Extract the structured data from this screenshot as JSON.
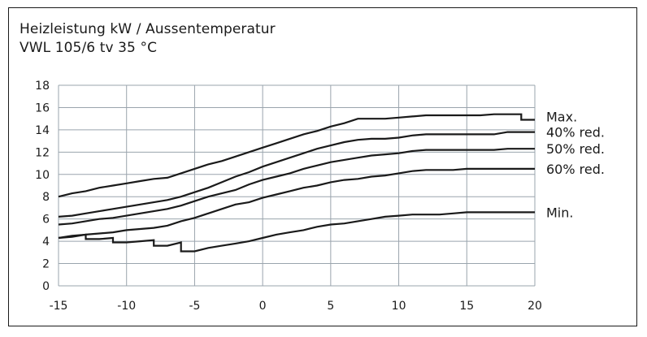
{
  "chart_data": {
    "type": "line",
    "title": "Heizleistung kW / Aussentemperatur",
    "subtitle": "VWL 105/6 tv 35 °C",
    "xlabel": "",
    "ylabel": "",
    "xlim": [
      -15,
      20
    ],
    "ylim": [
      0,
      18
    ],
    "x_ticks": [
      -15,
      -10,
      -5,
      0,
      5,
      10,
      15,
      20
    ],
    "y_ticks": [
      0,
      2,
      4,
      6,
      8,
      10,
      12,
      14,
      16,
      18
    ],
    "grid": true,
    "series": [
      {
        "name": "Max.",
        "points": [
          [
            -15,
            8.0
          ],
          [
            -14,
            8.3
          ],
          [
            -13,
            8.5
          ],
          [
            -12,
            8.8
          ],
          [
            -11,
            9.0
          ],
          [
            -10,
            9.2
          ],
          [
            -9,
            9.4
          ],
          [
            -8,
            9.6
          ],
          [
            -7,
            9.7
          ],
          [
            -6,
            10.1
          ],
          [
            -5,
            10.5
          ],
          [
            -4,
            10.9
          ],
          [
            -3,
            11.2
          ],
          [
            -2,
            11.6
          ],
          [
            -1,
            12.0
          ],
          [
            0,
            12.4
          ],
          [
            1,
            12.8
          ],
          [
            2,
            13.2
          ],
          [
            3,
            13.6
          ],
          [
            4,
            13.9
          ],
          [
            5,
            14.3
          ],
          [
            6,
            14.6
          ],
          [
            7,
            15.0
          ],
          [
            8,
            15.0
          ],
          [
            9,
            15.0
          ],
          [
            10,
            15.1
          ],
          [
            11,
            15.2
          ],
          [
            12,
            15.3
          ],
          [
            13,
            15.3
          ],
          [
            14,
            15.3
          ],
          [
            15,
            15.3
          ],
          [
            16,
            15.3
          ],
          [
            17,
            15.4
          ],
          [
            18,
            15.4
          ],
          [
            19,
            15.4
          ],
          [
            19,
            14.9
          ],
          [
            20,
            14.9
          ]
        ]
      },
      {
        "name": "40% red.",
        "points": [
          [
            -15,
            6.2
          ],
          [
            -14,
            6.3
          ],
          [
            -13,
            6.5
          ],
          [
            -12,
            6.7
          ],
          [
            -11,
            6.9
          ],
          [
            -10,
            7.1
          ],
          [
            -9,
            7.3
          ],
          [
            -8,
            7.5
          ],
          [
            -7,
            7.7
          ],
          [
            -6,
            8.0
          ],
          [
            -5,
            8.4
          ],
          [
            -4,
            8.8
          ],
          [
            -3,
            9.3
          ],
          [
            -2,
            9.8
          ],
          [
            -1,
            10.2
          ],
          [
            0,
            10.7
          ],
          [
            1,
            11.1
          ],
          [
            2,
            11.5
          ],
          [
            3,
            11.9
          ],
          [
            4,
            12.3
          ],
          [
            5,
            12.6
          ],
          [
            6,
            12.9
          ],
          [
            7,
            13.1
          ],
          [
            8,
            13.2
          ],
          [
            9,
            13.2
          ],
          [
            10,
            13.3
          ],
          [
            11,
            13.5
          ],
          [
            12,
            13.6
          ],
          [
            13,
            13.6
          ],
          [
            14,
            13.6
          ],
          [
            15,
            13.6
          ],
          [
            16,
            13.6
          ],
          [
            17,
            13.6
          ],
          [
            18,
            13.8
          ],
          [
            19,
            13.8
          ],
          [
            20,
            13.8
          ]
        ]
      },
      {
        "name": "50% red.",
        "points": [
          [
            -15,
            5.5
          ],
          [
            -14,
            5.6
          ],
          [
            -13,
            5.8
          ],
          [
            -12,
            6.0
          ],
          [
            -11,
            6.1
          ],
          [
            -10,
            6.3
          ],
          [
            -9,
            6.5
          ],
          [
            -8,
            6.7
          ],
          [
            -7,
            6.9
          ],
          [
            -6,
            7.2
          ],
          [
            -5,
            7.6
          ],
          [
            -4,
            8.0
          ],
          [
            -3,
            8.3
          ],
          [
            -2,
            8.6
          ],
          [
            -1,
            9.1
          ],
          [
            0,
            9.5
          ],
          [
            1,
            9.8
          ],
          [
            2,
            10.1
          ],
          [
            3,
            10.5
          ],
          [
            4,
            10.8
          ],
          [
            5,
            11.1
          ],
          [
            6,
            11.3
          ],
          [
            7,
            11.5
          ],
          [
            8,
            11.7
          ],
          [
            9,
            11.8
          ],
          [
            10,
            11.9
          ],
          [
            11,
            12.1
          ],
          [
            12,
            12.2
          ],
          [
            13,
            12.2
          ],
          [
            14,
            12.2
          ],
          [
            15,
            12.2
          ],
          [
            16,
            12.2
          ],
          [
            17,
            12.2
          ],
          [
            18,
            12.3
          ],
          [
            19,
            12.3
          ],
          [
            20,
            12.3
          ]
        ]
      },
      {
        "name": "60% red.",
        "points": [
          [
            -15,
            4.3
          ],
          [
            -14,
            4.4
          ],
          [
            -13,
            4.6
          ],
          [
            -12,
            4.7
          ],
          [
            -11,
            4.8
          ],
          [
            -10,
            5.0
          ],
          [
            -9,
            5.1
          ],
          [
            -8,
            5.2
          ],
          [
            -7,
            5.4
          ],
          [
            -6,
            5.8
          ],
          [
            -5,
            6.1
          ],
          [
            -4,
            6.5
          ],
          [
            -3,
            6.9
          ],
          [
            -2,
            7.3
          ],
          [
            -1,
            7.5
          ],
          [
            0,
            7.9
          ],
          [
            1,
            8.2
          ],
          [
            2,
            8.5
          ],
          [
            3,
            8.8
          ],
          [
            4,
            9.0
          ],
          [
            5,
            9.3
          ],
          [
            6,
            9.5
          ],
          [
            7,
            9.6
          ],
          [
            8,
            9.8
          ],
          [
            9,
            9.9
          ],
          [
            10,
            10.1
          ],
          [
            11,
            10.3
          ],
          [
            12,
            10.4
          ],
          [
            13,
            10.4
          ],
          [
            14,
            10.4
          ],
          [
            15,
            10.5
          ],
          [
            16,
            10.5
          ],
          [
            17,
            10.5
          ],
          [
            18,
            10.5
          ],
          [
            19,
            10.5
          ],
          [
            20,
            10.5
          ]
        ]
      },
      {
        "name": "Min.",
        "points": [
          [
            -15,
            4.3
          ],
          [
            -14,
            4.5
          ],
          [
            -13,
            4.6
          ],
          [
            -13,
            4.2
          ],
          [
            -12,
            4.2
          ],
          [
            -11,
            4.3
          ],
          [
            -11,
            3.9
          ],
          [
            -10,
            3.9
          ],
          [
            -9,
            4.0
          ],
          [
            -8,
            4.1
          ],
          [
            -8,
            3.6
          ],
          [
            -7,
            3.6
          ],
          [
            -6,
            3.9
          ],
          [
            -6,
            3.1
          ],
          [
            -5,
            3.1
          ],
          [
            -4,
            3.4
          ],
          [
            -3,
            3.6
          ],
          [
            -2,
            3.8
          ],
          [
            -1,
            4.0
          ],
          [
            0,
            4.3
          ],
          [
            1,
            4.6
          ],
          [
            2,
            4.8
          ],
          [
            3,
            5.0
          ],
          [
            4,
            5.3
          ],
          [
            5,
            5.5
          ],
          [
            6,
            5.6
          ],
          [
            7,
            5.8
          ],
          [
            8,
            6.0
          ],
          [
            9,
            6.2
          ],
          [
            10,
            6.3
          ],
          [
            11,
            6.4
          ],
          [
            12,
            6.4
          ],
          [
            13,
            6.4
          ],
          [
            14,
            6.5
          ],
          [
            15,
            6.6
          ],
          [
            16,
            6.6
          ],
          [
            17,
            6.6
          ],
          [
            18,
            6.6
          ],
          [
            19,
            6.6
          ],
          [
            20,
            6.6
          ]
        ]
      }
    ],
    "line_color": "#1a1a1a",
    "grid_color": "#9aa4ad"
  }
}
